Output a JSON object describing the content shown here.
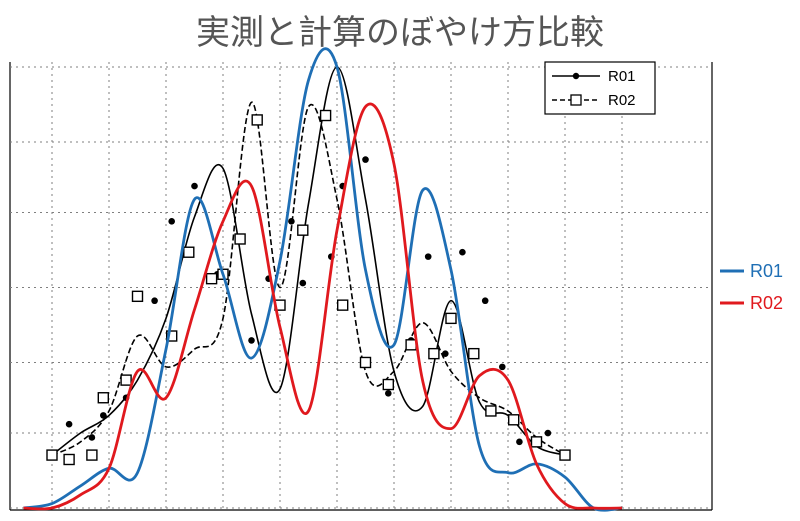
{
  "chart_data": {
    "type": "line",
    "title": "実測と計算のぼやけ方比較",
    "xlabel": "",
    "ylabel": "",
    "xlim": [
      0,
      10
    ],
    "ylim": [
      0,
      1
    ],
    "grid": true,
    "legends": [
      {
        "position": "top-right",
        "entries": [
          "R01",
          "R02"
        ]
      },
      {
        "position": "right",
        "entries": [
          "R01",
          "R02"
        ]
      }
    ],
    "measured_series": [
      {
        "name": "R01",
        "style": "solid-with-dots",
        "color": "#000000",
        "curve": {
          "x": [
            0.0,
            0.5,
            1.0,
            1.5,
            2.0,
            2.5,
            3.0,
            3.5,
            4.0,
            4.5,
            5.0,
            5.5,
            6.0,
            6.5,
            7.0,
            7.5,
            8.0,
            8.5,
            9.0
          ],
          "y": [
            0.12,
            0.17,
            0.21,
            0.29,
            0.43,
            0.66,
            0.77,
            0.44,
            0.27,
            0.69,
            1.0,
            0.7,
            0.31,
            0.23,
            0.47,
            0.24,
            0.21,
            0.14,
            0.12
          ]
        },
        "points": {
          "x": [
            0.0,
            0.3,
            0.7,
            0.9,
            1.3,
            1.8,
            2.1,
            2.5,
            2.9,
            3.5,
            3.8,
            4.2,
            4.4,
            4.9,
            5.1,
            5.5,
            5.9,
            6.3,
            6.6,
            6.9,
            7.2,
            7.6,
            7.9,
            8.2,
            8.7
          ],
          "y": [
            0.12,
            0.19,
            0.16,
            0.21,
            0.25,
            0.47,
            0.65,
            0.73,
            0.53,
            0.38,
            0.52,
            0.65,
            0.51,
            0.57,
            0.73,
            0.79,
            0.26,
            0.38,
            0.57,
            0.35,
            0.58,
            0.47,
            0.32,
            0.15,
            0.17
          ]
        }
      },
      {
        "name": "R02",
        "style": "dashed-with-squares",
        "color": "#000000",
        "curve": {
          "x": [
            0.0,
            0.5,
            1.0,
            1.5,
            2.0,
            2.5,
            3.0,
            3.5,
            4.0,
            4.5,
            5.0,
            5.5,
            6.0,
            6.5,
            7.0,
            7.5,
            8.0,
            8.5,
            9.0
          ],
          "y": [
            0.12,
            0.15,
            0.22,
            0.39,
            0.32,
            0.36,
            0.43,
            0.92,
            0.5,
            0.91,
            0.7,
            0.31,
            0.31,
            0.42,
            0.31,
            0.25,
            0.22,
            0.16,
            0.12
          ]
        },
        "points": {
          "x": [
            0.0,
            0.3,
            0.7,
            0.9,
            1.3,
            1.5,
            2.1,
            2.4,
            2.8,
            3.0,
            3.3,
            3.6,
            4.0,
            4.4,
            4.8,
            5.1,
            5.5,
            5.9,
            6.3,
            6.7,
            7.0,
            7.4,
            7.7,
            8.1,
            8.5,
            9.0
          ],
          "y": [
            0.12,
            0.11,
            0.12,
            0.25,
            0.29,
            0.48,
            0.39,
            0.58,
            0.52,
            0.53,
            0.61,
            0.88,
            0.46,
            0.63,
            0.89,
            0.46,
            0.33,
            0.28,
            0.37,
            0.35,
            0.43,
            0.35,
            0.22,
            0.2,
            0.15,
            0.12
          ]
        }
      }
    ],
    "computed_series": [
      {
        "name": "R01",
        "color": "#1F6FB5",
        "x": [
          -0.5,
          0.0,
          0.5,
          1.0,
          1.5,
          2.0,
          2.5,
          3.0,
          3.5,
          4.0,
          4.5,
          5.0,
          5.5,
          6.0,
          6.5,
          7.0,
          7.5,
          8.0,
          8.5,
          9.0,
          9.5,
          10.0
        ],
        "y": [
          0.0,
          0.01,
          0.05,
          0.09,
          0.08,
          0.36,
          0.7,
          0.53,
          0.34,
          0.56,
          0.97,
          1.0,
          0.54,
          0.37,
          0.72,
          0.54,
          0.14,
          0.08,
          0.1,
          0.07,
          0.0,
          0.0
        ]
      },
      {
        "name": "R02",
        "color": "#E0191E",
        "x": [
          -0.5,
          0.0,
          0.5,
          1.0,
          1.5,
          2.0,
          2.5,
          3.0,
          3.5,
          4.0,
          4.5,
          5.0,
          5.5,
          6.0,
          6.5,
          7.0,
          7.5,
          8.0,
          8.5,
          9.0,
          9.5,
          10.0
        ],
        "y": [
          0.0,
          0.0,
          0.03,
          0.09,
          0.31,
          0.25,
          0.45,
          0.65,
          0.73,
          0.41,
          0.22,
          0.63,
          0.91,
          0.78,
          0.29,
          0.18,
          0.3,
          0.29,
          0.1,
          0.01,
          0.0,
          0.0
        ]
      }
    ]
  }
}
